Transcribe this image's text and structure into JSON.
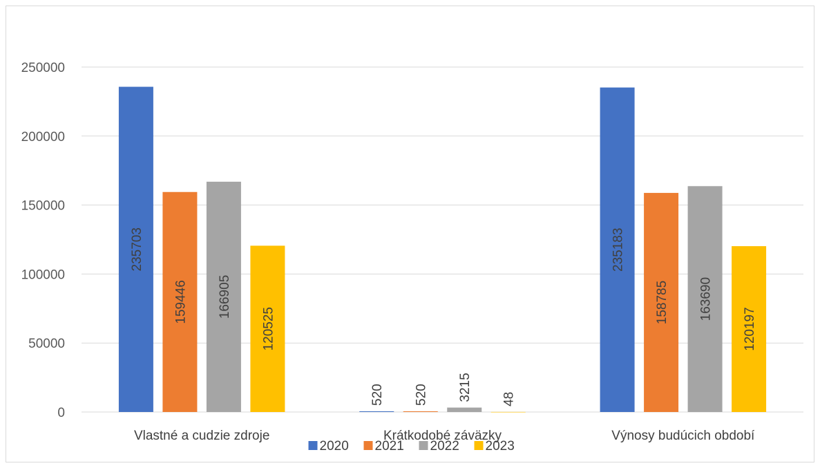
{
  "chart_data": {
    "type": "bar",
    "categories": [
      "Vlastné a cudzie zdroje",
      "Krátkodobé záväzky",
      "Výnosy budúcich období"
    ],
    "series": [
      {
        "name": "2020",
        "color": "#4472C4",
        "values": [
          235703,
          520,
          235183
        ]
      },
      {
        "name": "2021",
        "color": "#ED7D31",
        "values": [
          159446,
          520,
          158785
        ]
      },
      {
        "name": "2022",
        "color": "#A5A5A5",
        "values": [
          166905,
          3215,
          163690
        ]
      },
      {
        "name": "2023",
        "color": "#FFC000",
        "values": [
          120525,
          48,
          120197
        ]
      }
    ],
    "y_ticks": [
      "0",
      "50000",
      "100000",
      "150000",
      "200000",
      "250000"
    ],
    "ylim": [
      0,
      250000
    ],
    "grid": true,
    "legend": "bottom",
    "data_labels": "inside-rotated"
  }
}
